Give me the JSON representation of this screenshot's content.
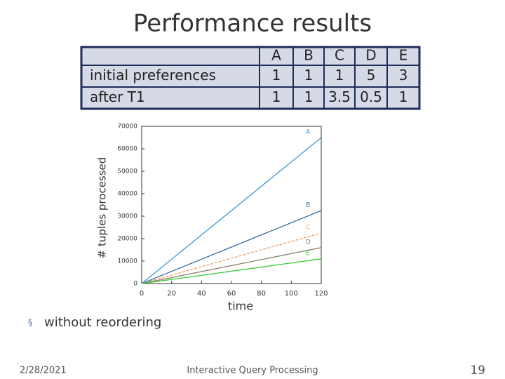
{
  "title": "Performance results",
  "table": {
    "columns": [
      "A",
      "B",
      "C",
      "D",
      "E"
    ],
    "rows": [
      {
        "label": "initial preferences",
        "values": [
          1,
          1,
          1,
          5,
          3
        ]
      },
      {
        "label": "after T1",
        "values": [
          1,
          1,
          3.5,
          0.5,
          1
        ]
      }
    ]
  },
  "chart_data": {
    "type": "line",
    "x_label": "time",
    "y_label": "# tuples processed",
    "x": [
      0,
      120
    ],
    "series": [
      {
        "name": "A",
        "color": "#3a9ad9",
        "values": [
          0,
          65000
        ]
      },
      {
        "name": "B",
        "color": "#3b6e9e",
        "values": [
          0,
          32500
        ]
      },
      {
        "name": "C",
        "color": "#f0a060",
        "values": [
          0,
          22500
        ]
      },
      {
        "name": "D",
        "color": "#8b7d6b",
        "values": [
          0,
          16000
        ]
      },
      {
        "name": "E",
        "color": "#33cc33",
        "values": [
          0,
          11000
        ]
      }
    ],
    "xlim": [
      0,
      120
    ],
    "xticks": [
      0,
      20,
      40,
      60,
      80,
      100,
      120
    ],
    "ylim": [
      0,
      70000
    ],
    "yticks": [
      0,
      10000,
      20000,
      30000,
      40000,
      50000,
      60000,
      70000
    ],
    "grid": false
  },
  "bullet": "without reordering",
  "footer": {
    "date": "2/28/2021",
    "center": "Interactive Query Processing",
    "page": "19"
  }
}
